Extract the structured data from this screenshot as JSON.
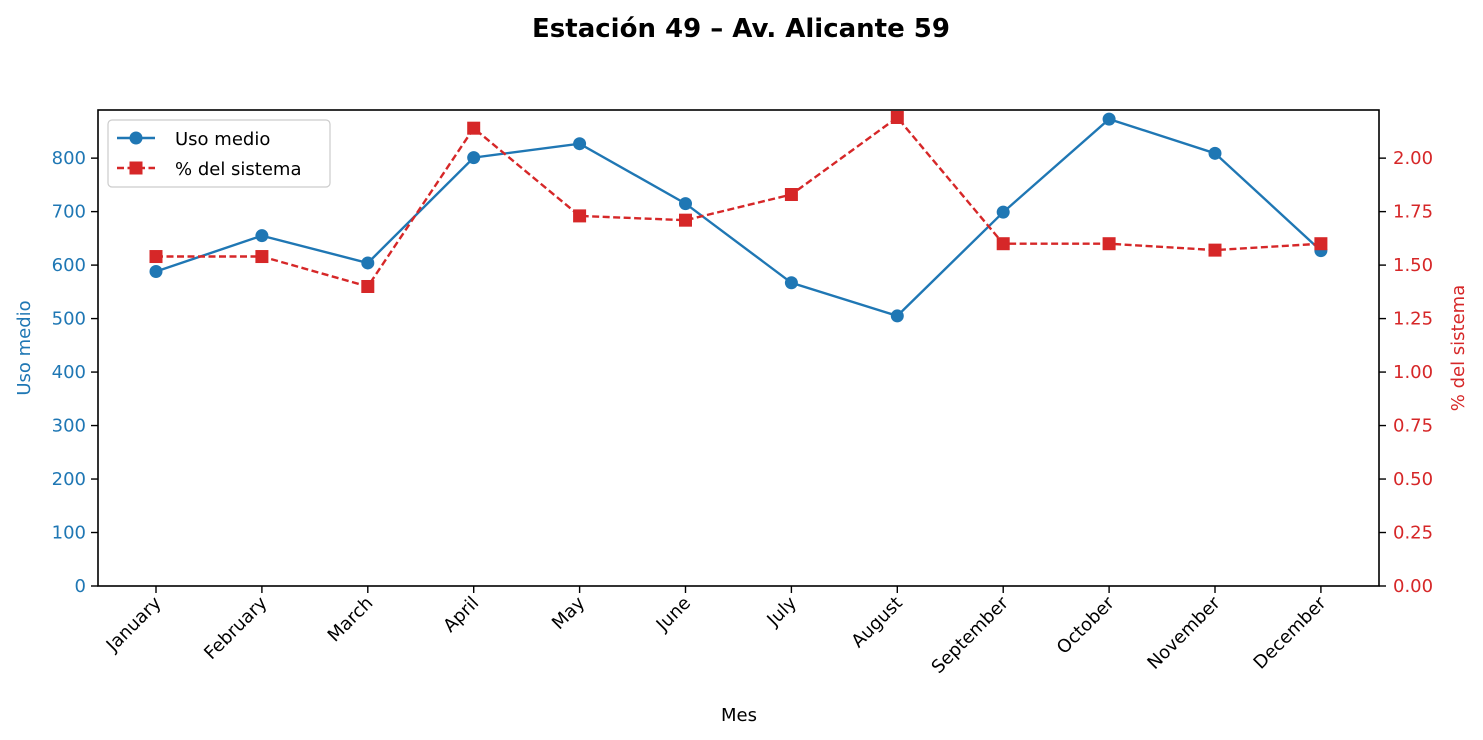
{
  "chart_data": {
    "type": "line",
    "title": "Estación 49 – Av. Alicante 59",
    "xlabel": "Mes",
    "ylabel_left": "Uso medio",
    "ylabel_right": "% del sistema",
    "categories": [
      "January",
      "February",
      "March",
      "April",
      "May",
      "June",
      "July",
      "August",
      "September",
      "October",
      "November",
      "December"
    ],
    "ylim_left": [
      0,
      890
    ],
    "ylim_right": [
      0,
      2.225
    ],
    "yticks_left": [
      0,
      100,
      200,
      300,
      400,
      500,
      600,
      700,
      800
    ],
    "yticks_right": [
      0.0,
      0.25,
      0.5,
      0.75,
      1.0,
      1.25,
      1.5,
      1.75,
      2.0
    ],
    "grid": false,
    "legend_position": "upper-left",
    "series": [
      {
        "name": "Uso medio",
        "axis": "left",
        "color": "#1f77b4",
        "marker": "circle",
        "linestyle": "solid",
        "values": [
          588,
          655,
          604,
          801,
          827,
          715,
          567,
          505,
          699,
          873,
          809,
          627
        ]
      },
      {
        "name": "% del sistema",
        "axis": "right",
        "color": "#d62728",
        "marker": "square",
        "linestyle": "dashed",
        "values": [
          1.54,
          1.54,
          1.4,
          2.14,
          1.73,
          1.71,
          1.83,
          2.19,
          1.6,
          1.6,
          1.57,
          1.6
        ]
      }
    ]
  }
}
